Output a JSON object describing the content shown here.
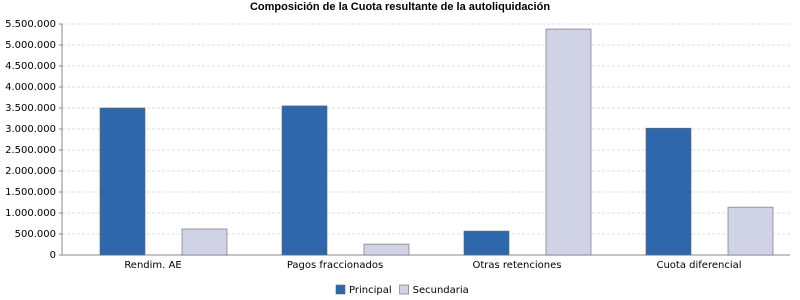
{
  "chart_data": {
    "type": "bar",
    "title": "Composición de la Cuota resultante de la autoliquidación",
    "categories": [
      "Rendim. AE",
      "Pagos fraccionados",
      "Otras retenciones",
      "Cuota diferencial"
    ],
    "series": [
      {
        "name": "Principal",
        "color": "#2e67ac",
        "values": [
          3500000,
          3550000,
          570000,
          3020000
        ]
      },
      {
        "name": "Secundaria",
        "color": "#d0d3e6",
        "values": [
          620000,
          260000,
          5380000,
          1140000
        ]
      }
    ],
    "ylim": [
      0,
      5500000
    ],
    "yticks": [
      0,
      {
        "value": 500000,
        "label": "500.000"
      },
      {
        "value": 1000000,
        "label": "1.000.000"
      },
      {
        "value": 1500000,
        "label": "1.500.000"
      },
      {
        "value": 2000000,
        "label": "2.000.000"
      },
      {
        "value": 2500000,
        "label": "2.500.000"
      },
      {
        "value": 3000000,
        "label": "3.000.000"
      },
      {
        "value": 3500000,
        "label": "3.500.000"
      },
      {
        "value": 4000000,
        "label": "4.000.000"
      },
      {
        "value": 4500000,
        "label": "4.500.000"
      },
      {
        "value": 5000000,
        "label": "5.000.000"
      },
      {
        "value": 5500000,
        "label": "5.500.000"
      }
    ],
    "grid": true,
    "legend": "bottom"
  }
}
